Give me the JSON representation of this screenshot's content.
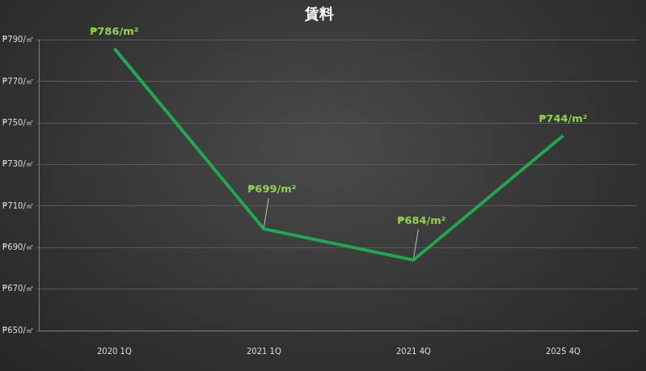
{
  "chart_data": {
    "type": "line",
    "title": "賃料",
    "categories": [
      "2020 1Q",
      "2021 1Q",
      "2021 4Q",
      "2025 4Q"
    ],
    "values": [
      786,
      699,
      684,
      744
    ],
    "value_labels": [
      "₱786/m²",
      "₱699/m²",
      "₱684/m²",
      "₱744/m²"
    ],
    "data_labels": true,
    "color": "#1fa84f",
    "ylim": [
      650,
      790
    ],
    "yticks": [
      {
        "value": 650,
        "label": "₱650/㎡"
      },
      {
        "value": 670,
        "label": "₱670/㎡"
      },
      {
        "value": 690,
        "label": "₱690/㎡"
      },
      {
        "value": 710,
        "label": "₱710/㎡"
      },
      {
        "value": 730,
        "label": "₱730/㎡"
      },
      {
        "value": 750,
        "label": "₱750/㎡"
      },
      {
        "value": 770,
        "label": "₱770/㎡"
      },
      {
        "value": 790,
        "label": "₱790/㎡"
      }
    ],
    "grid": true
  }
}
